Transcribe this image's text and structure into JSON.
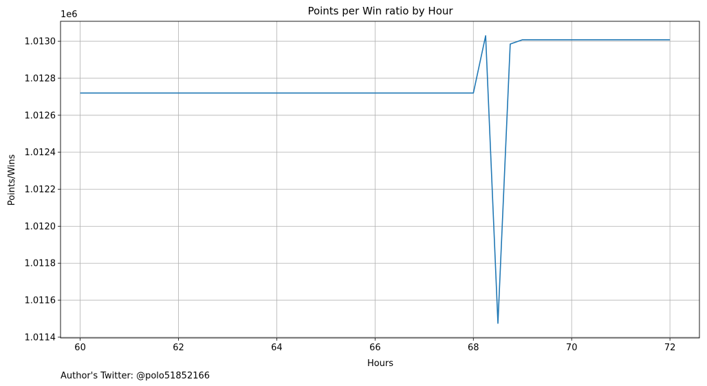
{
  "chart_data": {
    "type": "line",
    "title": "Points per Win ratio by Hour",
    "xlabel": "Hours",
    "ylabel": "Points/Wins",
    "y_offset_label": "1e6",
    "xlim": [
      59.6,
      72.6
    ],
    "ylim": [
      1011396,
      1013108
    ],
    "x_ticks": [
      60,
      62,
      64,
      66,
      68,
      70,
      72
    ],
    "x_tick_labels": [
      "60",
      "62",
      "64",
      "66",
      "68",
      "70",
      "72"
    ],
    "y_ticks": [
      1011400,
      1011600,
      1011800,
      1012000,
      1012200,
      1012400,
      1012600,
      1012800,
      1013000
    ],
    "y_tick_labels": [
      "1.0114",
      "1.0116",
      "1.0118",
      "1.0120",
      "1.0122",
      "1.0124",
      "1.0126",
      "1.0128",
      "1.0130"
    ],
    "grid": true,
    "series": [
      {
        "color": "#1f77b4",
        "x": [
          60,
          60.25,
          60.5,
          60.75,
          61,
          61.25,
          61.5,
          61.75,
          62,
          62.25,
          62.5,
          62.75,
          63,
          63.25,
          63.5,
          63.75,
          64,
          64.25,
          64.5,
          64.75,
          65,
          65.25,
          65.5,
          65.75,
          66,
          66.25,
          66.5,
          66.75,
          67,
          67.25,
          67.5,
          67.75,
          68,
          68.25,
          68.5,
          68.75,
          69,
          69.25,
          69.5,
          69.75,
          70,
          70.25,
          70.5,
          70.75,
          71,
          71.25,
          71.5,
          71.75,
          72
        ],
        "y": [
          1012720,
          1012720,
          1012720,
          1012720,
          1012720,
          1012720,
          1012720,
          1012720,
          1012720,
          1012720,
          1012720,
          1012720,
          1012720,
          1012720,
          1012720,
          1012720,
          1012720,
          1012720,
          1012720,
          1012720,
          1012720,
          1012720,
          1012720,
          1012720,
          1012720,
          1012720,
          1012720,
          1012720,
          1012720,
          1012720,
          1012720,
          1012720,
          1012720,
          1013030,
          1011475,
          1012985,
          1013008,
          1013008,
          1013008,
          1013008,
          1013008,
          1013008,
          1013008,
          1013008,
          1013008,
          1013008,
          1013008,
          1013008,
          1013008
        ]
      }
    ]
  },
  "footer": {
    "text": "Author's Twitter: @polo51852166"
  }
}
